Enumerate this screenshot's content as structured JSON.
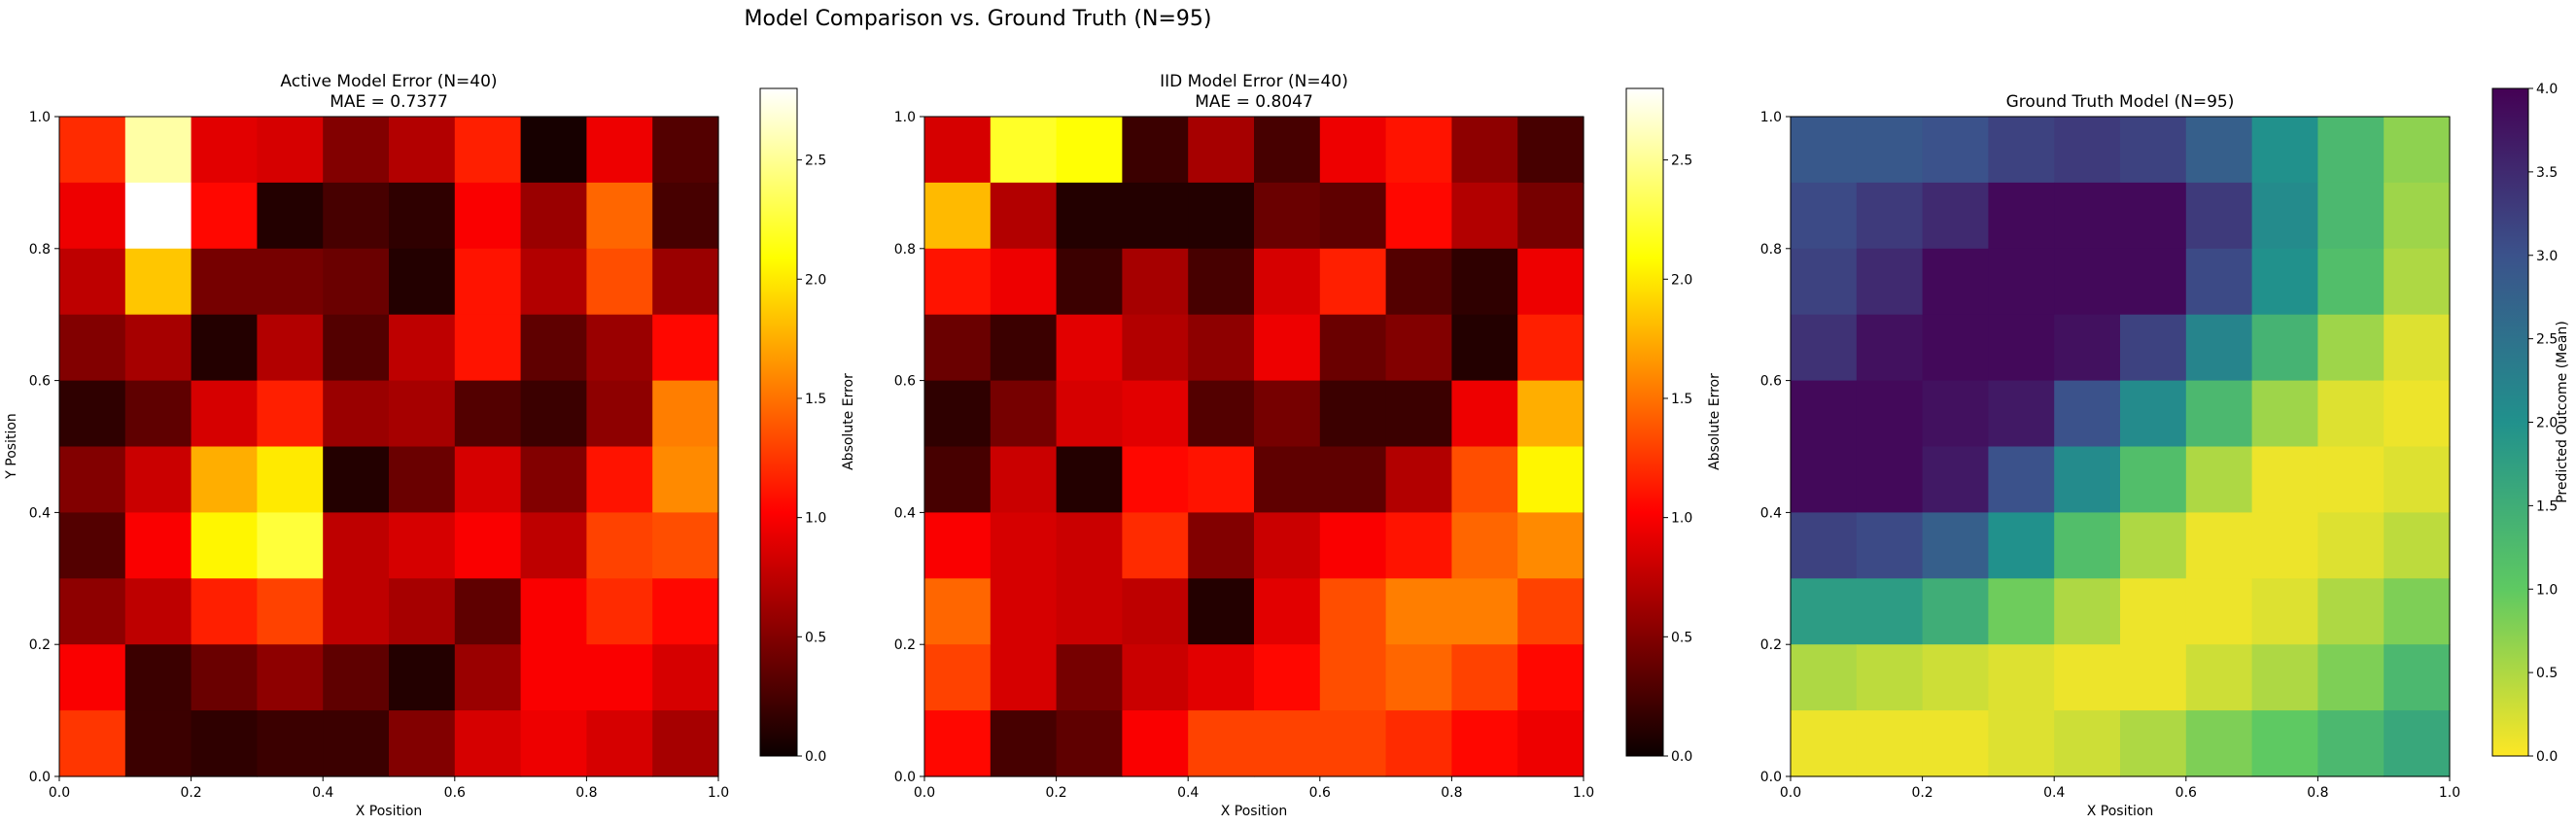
{
  "figure": {
    "suptitle": "Model Comparison vs. Ground Truth (N=95)"
  },
  "chart_data": [
    {
      "type": "heatmap",
      "title": "Active Model Error (N=40)",
      "subtitle": "MAE = 0.7377",
      "xlabel": "X Position",
      "ylabel": "Y Position",
      "xlim": [
        0,
        1
      ],
      "ylim": [
        0,
        1
      ],
      "xticks": [
        "0.0",
        "0.2",
        "0.4",
        "0.6",
        "0.8",
        "1.0"
      ],
      "yticks": [
        "0.0",
        "0.2",
        "0.4",
        "0.6",
        "0.8",
        "1.0"
      ],
      "grid_rows": 10,
      "grid_cols": 10,
      "row_order": "top-to-bottom",
      "colormap": "hot",
      "vmin": 0,
      "vmax": 2.8,
      "colorbar": {
        "label": "Absolute Error",
        "ticks": [
          "0.0",
          "0.5",
          "1.0",
          "1.5",
          "2.0",
          "2.5"
        ]
      },
      "values": [
        [
          1.2,
          2.55,
          0.9,
          0.85,
          0.5,
          0.7,
          1.15,
          0.05,
          0.95,
          0.3
        ],
        [
          0.95,
          2.8,
          1.05,
          0.1,
          0.25,
          0.15,
          1.0,
          0.6,
          1.45,
          0.25
        ],
        [
          0.75,
          1.85,
          0.45,
          0.45,
          0.4,
          0.1,
          1.1,
          0.7,
          1.35,
          0.6
        ],
        [
          0.5,
          0.65,
          0.1,
          0.7,
          0.3,
          0.75,
          1.1,
          0.35,
          0.6,
          1.05
        ],
        [
          0.15,
          0.35,
          0.85,
          1.15,
          0.6,
          0.65,
          0.3,
          0.2,
          0.55,
          1.55
        ],
        [
          0.5,
          0.8,
          1.75,
          2.0,
          0.1,
          0.4,
          0.85,
          0.5,
          1.1,
          1.6
        ],
        [
          0.3,
          1.0,
          2.05,
          2.25,
          0.75,
          0.85,
          1.0,
          0.75,
          1.3,
          1.35
        ],
        [
          0.55,
          0.75,
          1.15,
          1.3,
          0.75,
          0.65,
          0.35,
          1.0,
          1.2,
          1.05
        ],
        [
          1.0,
          0.2,
          0.4,
          0.55,
          0.35,
          0.1,
          0.6,
          1.0,
          1.0,
          0.85
        ],
        [
          1.25,
          0.2,
          0.15,
          0.2,
          0.2,
          0.5,
          0.85,
          0.95,
          0.85,
          0.65
        ]
      ]
    },
    {
      "type": "heatmap",
      "title": "IID Model Error (N=40)",
      "subtitle": "MAE = 0.8047",
      "xlabel": "X Position",
      "ylabel": "",
      "xlim": [
        0,
        1
      ],
      "ylim": [
        0,
        1
      ],
      "xticks": [
        "0.0",
        "0.2",
        "0.4",
        "0.6",
        "0.8",
        "1.0"
      ],
      "yticks": [
        "0.0",
        "0.2",
        "0.4",
        "0.6",
        "0.8",
        "1.0"
      ],
      "grid_rows": 10,
      "grid_cols": 10,
      "row_order": "top-to-bottom",
      "colormap": "hot",
      "vmin": 0,
      "vmax": 2.8,
      "colorbar": {
        "label": "Absolute Error",
        "ticks": [
          "0.0",
          "0.5",
          "1.0",
          "1.5",
          "2.0",
          "2.5"
        ]
      },
      "values": [
        [
          0.85,
          2.2,
          2.1,
          0.2,
          0.65,
          0.25,
          0.95,
          1.1,
          0.55,
          0.25
        ],
        [
          1.8,
          0.7,
          0.1,
          0.1,
          0.1,
          0.4,
          0.35,
          1.05,
          0.7,
          0.45
        ],
        [
          1.1,
          0.95,
          0.2,
          0.65,
          0.25,
          0.85,
          1.15,
          0.3,
          0.15,
          0.95
        ],
        [
          0.4,
          0.2,
          0.9,
          0.7,
          0.55,
          0.95,
          0.4,
          0.5,
          0.1,
          1.15
        ],
        [
          0.15,
          0.45,
          0.85,
          0.9,
          0.3,
          0.45,
          0.2,
          0.2,
          0.95,
          1.75
        ],
        [
          0.25,
          0.8,
          0.1,
          1.05,
          1.1,
          0.35,
          0.35,
          0.7,
          1.35,
          2.05
        ],
        [
          1.0,
          0.85,
          0.8,
          1.2,
          0.5,
          0.8,
          1.0,
          1.1,
          1.45,
          1.6
        ],
        [
          1.45,
          0.85,
          0.8,
          0.75,
          0.1,
          0.9,
          1.35,
          1.55,
          1.55,
          1.3
        ],
        [
          1.3,
          0.85,
          0.45,
          0.8,
          0.9,
          1.05,
          1.35,
          1.45,
          1.3,
          1.05
        ],
        [
          1.05,
          0.25,
          0.35,
          1.0,
          1.3,
          1.3,
          1.3,
          1.2,
          1.05,
          0.95
        ]
      ]
    },
    {
      "type": "heatmap",
      "title": "Ground Truth Model (N=95)",
      "subtitle": "",
      "xlabel": "X Position",
      "ylabel": "",
      "xlim": [
        0,
        1
      ],
      "ylim": [
        0,
        1
      ],
      "xticks": [
        "0.0",
        "0.2",
        "0.4",
        "0.6",
        "0.8",
        "1.0"
      ],
      "yticks": [
        "0.0",
        "0.2",
        "0.4",
        "0.6",
        "0.8",
        "1.0"
      ],
      "grid_rows": 10,
      "grid_cols": 10,
      "row_order": "top-to-bottom",
      "colormap": "viridis_r",
      "vmin": 0,
      "vmax": 4,
      "colorbar": {
        "label": "Predicted Outcome (Mean)",
        "ticks": [
          "0.0",
          "0.5",
          "1.0",
          "1.5",
          "2.0",
          "2.5",
          "3.0",
          "3.5",
          "4.0"
        ]
      },
      "values": [
        [
          2.9,
          2.9,
          3.0,
          3.2,
          3.3,
          3.2,
          2.8,
          2.0,
          1.3,
          0.7
        ],
        [
          3.1,
          3.3,
          3.5,
          3.9,
          3.9,
          3.9,
          3.3,
          2.1,
          1.3,
          0.6
        ],
        [
          3.2,
          3.5,
          3.9,
          3.9,
          3.9,
          3.9,
          3.1,
          2.0,
          1.2,
          0.5
        ],
        [
          3.4,
          3.8,
          3.9,
          3.9,
          3.8,
          3.2,
          2.2,
          1.4,
          0.6,
          0.2
        ],
        [
          3.9,
          3.9,
          3.8,
          3.7,
          3.0,
          2.1,
          1.3,
          0.6,
          0.2,
          0.1
        ],
        [
          3.9,
          3.9,
          3.7,
          3.0,
          2.1,
          1.2,
          0.5,
          0.1,
          0.1,
          0.2
        ],
        [
          3.2,
          3.1,
          2.8,
          2.0,
          1.2,
          0.5,
          0.1,
          0.1,
          0.2,
          0.4
        ],
        [
          1.8,
          1.8,
          1.5,
          0.9,
          0.5,
          0.1,
          0.1,
          0.2,
          0.5,
          0.8
        ],
        [
          0.5,
          0.4,
          0.3,
          0.2,
          0.1,
          0.1,
          0.3,
          0.5,
          0.8,
          1.3
        ],
        [
          0.1,
          0.1,
          0.1,
          0.2,
          0.3,
          0.5,
          0.8,
          1.0,
          1.3,
          1.6
        ]
      ]
    }
  ]
}
